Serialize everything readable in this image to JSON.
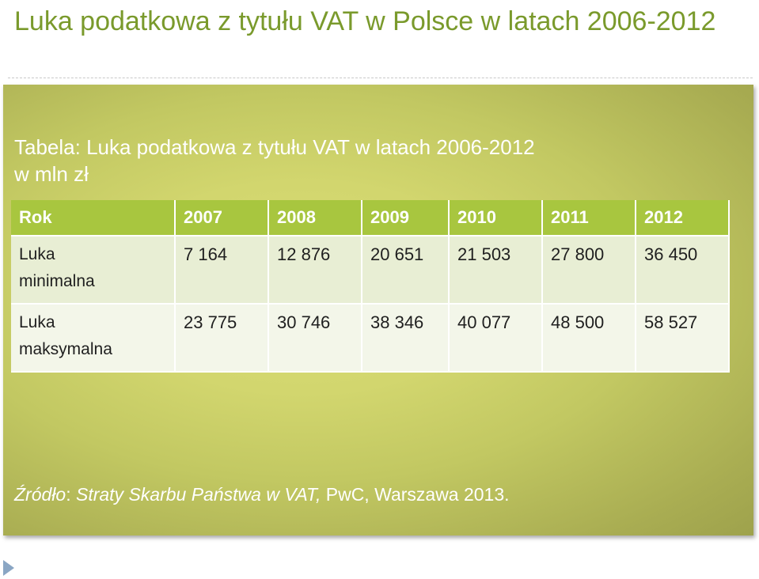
{
  "slide": {
    "title": "Luka podatkowa z tytułu VAT w Polsce w latach 2006-2012"
  },
  "panel": {
    "caption_line1": "Tabela: Luka podatkowa z tytułu VAT w latach 2006-2012",
    "caption_line2": "w mln zł",
    "table": {
      "headers": [
        "Rok",
        "2007",
        "2008",
        "2009",
        "2010",
        "2011",
        "2012"
      ],
      "rows": [
        {
          "label_line1": "Luka",
          "label_line2": "minimalna",
          "values": [
            "7 164",
            "12 876",
            "20 651",
            "21 503",
            "27 800",
            "36 450"
          ]
        },
        {
          "label_line1": "Luka",
          "label_line2": "maksymalna",
          "values": [
            "23 775",
            "30 746",
            "38 346",
            "40 077",
            "48 500",
            "58 527"
          ]
        }
      ]
    },
    "source": {
      "prefix_italic": "Źródło",
      "colon": ": ",
      "title_italic": "Straty Skarbu Państwa w VAT,",
      "rest": " PwC, Warszawa 2013."
    }
  },
  "colors": {
    "title": "#7a9a2c",
    "header_bg": "#a8c63f",
    "row_bg": "#e8eed4",
    "panel_center": "#d9dd76",
    "panel_edge": "#9ea24c"
  },
  "icons": {
    "bullet": "triangle-right-icon"
  }
}
